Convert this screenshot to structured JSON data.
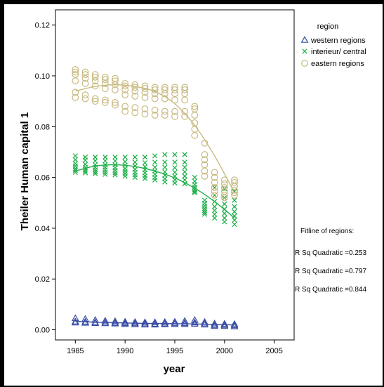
{
  "chart_data": {
    "type": "scatter",
    "xlabel": "year",
    "ylabel": "Theiler Human capital 1",
    "xlim": [
      1983,
      2007
    ],
    "ylim": [
      -0.004,
      0.126
    ],
    "x_ticks": [
      "1985",
      "1990",
      "1995",
      "2000",
      "2005"
    ],
    "y_ticks": [
      "0.00",
      "0.02",
      "0.04",
      "0.06",
      "0.08",
      "0.10",
      "0.12"
    ],
    "grid": false,
    "legend": {
      "position": "top-right",
      "title": "region",
      "items": [
        "western regions",
        "interieur/ central",
        "eastern regions"
      ]
    },
    "fit_notes": {
      "title": "Fitline of regions:",
      "lines": [
        "R Sq Quadratic =0.253",
        "R Sq Quadratic =0.797",
        "R Sq Quadratic =0.844"
      ]
    },
    "series": [
      {
        "name": "western regions",
        "marker": "triangle",
        "color": "#3a4ea6",
        "x": [
          1985,
          1986,
          1987,
          1988,
          1989,
          1990,
          1991,
          1992,
          1993,
          1994,
          1995,
          1996,
          1997,
          1998,
          1999,
          2000,
          2001
        ],
        "points": [
          [
            0.0045,
            0.0032,
            0.0028
          ],
          [
            0.0042,
            0.0031,
            0.0027
          ],
          [
            0.0038,
            0.0029,
            0.0026
          ],
          [
            0.0035,
            0.0028,
            0.0025
          ],
          [
            0.0033,
            0.0027,
            0.0024
          ],
          [
            0.0031,
            0.0026,
            0.0022
          ],
          [
            0.003,
            0.0025,
            0.0021
          ],
          [
            0.0029,
            0.0024,
            0.002
          ],
          [
            0.0029,
            0.0023,
            0.002
          ],
          [
            0.003,
            0.0024,
            0.0021
          ],
          [
            0.0031,
            0.0025,
            0.0022
          ],
          [
            0.0034,
            0.0026,
            0.0022
          ],
          [
            0.0038,
            0.0028,
            0.0023
          ],
          [
            0.003,
            0.0024,
            0.002
          ],
          [
            0.0024,
            0.0018,
            0.0014
          ],
          [
            0.0023,
            0.0018,
            0.0014
          ],
          [
            0.0022,
            0.0017,
            0.0013
          ]
        ],
        "fit": {
          "x": [
            1985,
            1987,
            1989,
            1991,
            1993,
            1995,
            1997,
            1999,
            2001
          ],
          "y": [
            0.0033,
            0.003,
            0.0028,
            0.0026,
            0.0025,
            0.0024,
            0.0023,
            0.0021,
            0.0019
          ]
        }
      },
      {
        "name": "interieur/ central",
        "marker": "cross",
        "color": "#22b04b",
        "x": [
          1985,
          1986,
          1987,
          1988,
          1989,
          1990,
          1991,
          1992,
          1993,
          1994,
          1995,
          1996,
          1997,
          1998,
          1999,
          2000,
          2001
        ],
        "points": [
          [
            0.0685,
            0.067,
            0.0655,
            0.0645,
            0.0635,
            0.0628,
            0.062
          ],
          [
            0.068,
            0.0668,
            0.0652,
            0.064,
            0.0632,
            0.0625,
            0.0618
          ],
          [
            0.068,
            0.0665,
            0.065,
            0.064,
            0.063,
            0.0622,
            0.0615
          ],
          [
            0.068,
            0.0665,
            0.065,
            0.064,
            0.063,
            0.062,
            0.0612
          ],
          [
            0.068,
            0.0665,
            0.065,
            0.0638,
            0.0628,
            0.0618,
            0.061
          ],
          [
            0.068,
            0.0662,
            0.0648,
            0.0635,
            0.0625,
            0.0615,
            0.0605
          ],
          [
            0.068,
            0.066,
            0.0645,
            0.0632,
            0.062,
            0.061,
            0.06
          ],
          [
            0.068,
            0.0658,
            0.0642,
            0.063,
            0.0618,
            0.0606,
            0.0596
          ],
          [
            0.0685,
            0.066,
            0.064,
            0.0625,
            0.0612,
            0.06,
            0.059
          ],
          [
            0.069,
            0.066,
            0.064,
            0.0622,
            0.0608,
            0.0595,
            0.0582
          ],
          [
            0.069,
            0.066,
            0.0638,
            0.062,
            0.0605,
            0.059,
            0.0578
          ],
          [
            0.069,
            0.066,
            0.064,
            0.0622,
            0.0605,
            0.059,
            0.0575
          ],
          [
            0.06,
            0.0585,
            0.0572,
            0.0562,
            0.0552,
            0.0545,
            0.054
          ],
          [
            0.051,
            0.0498,
            0.0488,
            0.0478,
            0.047,
            0.0462,
            0.0455
          ],
          [
            0.056,
            0.053,
            0.0505,
            0.0485,
            0.047,
            0.0455,
            0.044
          ],
          [
            0.0555,
            0.052,
            0.0495,
            0.0475,
            0.0458,
            0.044,
            0.0425
          ],
          [
            0.0545,
            0.051,
            0.0485,
            0.0465,
            0.0448,
            0.0432,
            0.0415
          ]
        ],
        "fit": {
          "x": [
            1985,
            1987,
            1989,
            1991,
            1993,
            1995,
            1997,
            1999,
            2001
          ],
          "y": [
            0.0625,
            0.0645,
            0.065,
            0.0643,
            0.0625,
            0.0598,
            0.0558,
            0.0505,
            0.044
          ]
        }
      },
      {
        "name": "eastern regions",
        "marker": "circle",
        "color": "#c8ba80",
        "x": [
          1985,
          1986,
          1987,
          1988,
          1989,
          1990,
          1991,
          1992,
          1993,
          1994,
          1995,
          1996,
          1997,
          1998,
          1999,
          2000,
          2001
        ],
        "points": [
          [
            0.1025,
            0.1015,
            0.1005,
            0.098,
            0.0935,
            0.0915
          ],
          [
            0.1015,
            0.1005,
            0.099,
            0.097,
            0.0925,
            0.091
          ],
          [
            0.1005,
            0.0995,
            0.098,
            0.096,
            0.091,
            0.09
          ],
          [
            0.0995,
            0.0985,
            0.097,
            0.095,
            0.0905,
            0.0895
          ],
          [
            0.099,
            0.098,
            0.0965,
            0.0945,
            0.0895,
            0.0885
          ],
          [
            0.097,
            0.096,
            0.0945,
            0.0925,
            0.088,
            0.086
          ],
          [
            0.0965,
            0.0955,
            0.094,
            0.092,
            0.0875,
            0.0855
          ],
          [
            0.096,
            0.095,
            0.0935,
            0.0915,
            0.087,
            0.085
          ],
          [
            0.0955,
            0.0945,
            0.093,
            0.091,
            0.0865,
            0.0845
          ],
          [
            0.0955,
            0.0945,
            0.093,
            0.091,
            0.086,
            0.0845
          ],
          [
            0.0955,
            0.0945,
            0.093,
            0.0905,
            0.086,
            0.084
          ],
          [
            0.0955,
            0.0945,
            0.093,
            0.0905,
            0.086,
            0.084
          ],
          [
            0.088,
            0.087,
            0.0845,
            0.0815,
            0.079,
            0.0765
          ],
          [
            0.0735,
            0.069,
            0.067,
            0.065,
            0.0625,
            0.0605
          ],
          [
            0.062,
            0.06,
            0.058,
            0.056,
            0.0545,
            0.053
          ],
          [
            0.059,
            0.0575,
            0.056,
            0.0545,
            0.053,
            0.052
          ],
          [
            0.059,
            0.058,
            0.0565,
            0.055,
            0.054,
            0.053
          ]
        ],
        "fit": {
          "x": [
            1985,
            1987,
            1989,
            1991,
            1993,
            1995,
            1997,
            1999,
            2001
          ],
          "y": [
            0.094,
            0.0958,
            0.0965,
            0.0958,
            0.0938,
            0.089,
            0.0805,
            0.0685,
            0.054
          ]
        }
      }
    ]
  }
}
